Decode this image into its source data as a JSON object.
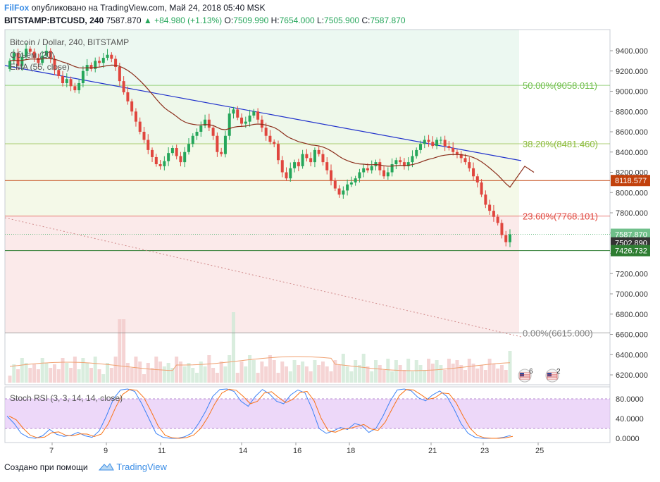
{
  "header": {
    "author": "FilFox",
    "published_text": "опубликовано на TradingView.com, Май 24, 2018 05:40 MSK",
    "symbol": "BITSTAMP:BTCUSD, 240",
    "price": "7587.870",
    "arrow": "▲",
    "change": "+84.980 (+1.13%)",
    "o_label": "O:",
    "o_value": "7509.990",
    "h_label": "H:",
    "h_value": "7654.000",
    "l_label": "L:",
    "l_value": "7505.900",
    "c_label": "C:",
    "c_value": "7587.870"
  },
  "legend": {
    "title": "Bitcoin / Dollar, 240, BITSTAMP",
    "volume": "Объём (20)",
    "ema": "EMA (55, close)",
    "stoch": "Stoch RSI (3, 3, 14, 14, close)"
  },
  "fib_levels": [
    {
      "label": "50.00%(9058.011)",
      "price": 9058.011,
      "color": "#6fbf4a"
    },
    {
      "label": "38.20%(8481.460)",
      "price": 8481.46,
      "color": "#8bbb3a"
    },
    {
      "label": "23.60%(7768.101)",
      "price": 7768.101,
      "color": "#e0463e"
    },
    {
      "label": "0.00%(6615.000)",
      "price": 6615.0,
      "color": "#808080"
    }
  ],
  "price_axis": {
    "ticks": [
      "9400.000",
      "9200.000",
      "9000.000",
      "8800.000",
      "8600.000",
      "8400.000",
      "8200.000",
      "8000.000",
      "7800.000",
      "7600.000",
      "7400.000",
      "7200.000",
      "7000.000",
      "6800.000",
      "6600.000",
      "6400.000",
      "6200.000"
    ],
    "tick_values": [
      9400,
      9200,
      9000,
      8800,
      8600,
      8400,
      8200,
      8000,
      7800,
      7600,
      7400,
      7200,
      7000,
      6800,
      6600,
      6400,
      6200
    ],
    "labels": [
      {
        "text": "8118.577",
        "value": 8118.577,
        "bg": "#c2410c"
      },
      {
        "text": "7587.870",
        "value": 7587.87,
        "bg": "#6fbf8a"
      },
      {
        "text": "7502.890",
        "value": 7502.89,
        "bg": "#333333"
      },
      {
        "text": "7426.732",
        "value": 7426.732,
        "bg": "#2e7d32"
      }
    ]
  },
  "stoch_axis": {
    "ticks": [
      "80.0000",
      "40.0000",
      "0.0000"
    ],
    "values": [
      80,
      40,
      0
    ]
  },
  "time_axis": {
    "labels": [
      "7",
      "9",
      "11",
      "14",
      "16",
      "18",
      "21",
      "23",
      "25"
    ]
  },
  "events": [
    {
      "count": "6"
    },
    {
      "count": "2"
    }
  ],
  "footer": {
    "created": "Создано при помощи",
    "brand": "TradingView"
  },
  "colors": {
    "up": "#26a65b",
    "down": "#e0463e",
    "ema": "#8b2d1a",
    "trend": "#2233cc",
    "stoch_k": "#3b82f6",
    "stoch_d": "#f97316",
    "stoch_band": "#e1bef5"
  }
}
